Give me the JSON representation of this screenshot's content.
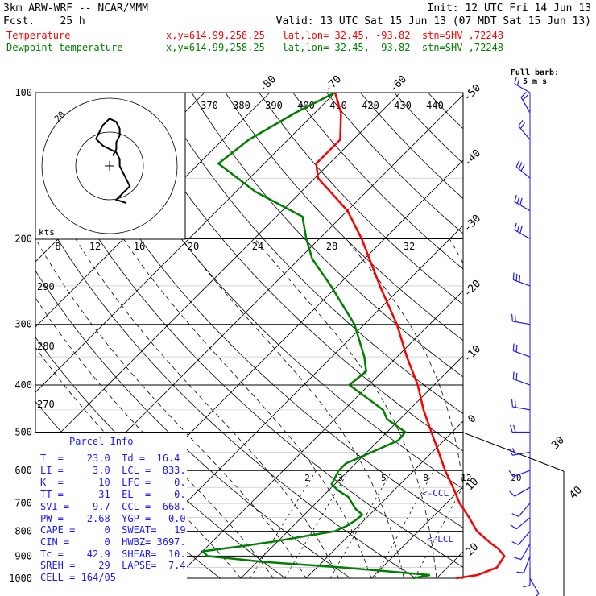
{
  "header": {
    "model": "3km ARW-WRF -- NCAR/MMM",
    "fcst": "Fcst.    25 h",
    "init": "Init: 12 UTC Fri 14 Jun 13",
    "valid": "Valid: 13 UTC Sat 15 Jun 13 (07 MDT Sat 15 Jun 13)"
  },
  "legend": [
    {
      "name": "Temperature",
      "color": "#ff0000",
      "loc": "x,y=614.99,258.25   lat,lon= 32.45, -93.82  stn=SHV ,72248"
    },
    {
      "name": "Dewpoint temperature",
      "color": "#008000",
      "loc": "x,y=614.99,258.25   lat,lon= 32.45, -93.82  stn=SHV ,72248"
    }
  ],
  "barb_legend": {
    "line1": "Full barb:",
    "line2": "5 m s"
  },
  "parcel_info": {
    "title": "Parcel Info",
    "rows": [
      "T  =    23.0  Td =  16.4",
      "LI =     3.0  LCL =  833.",
      "K  =      10  LFC =    0.",
      "TT =      31  EL  =    0.",
      "SVI =    9.7  CCL =  668.",
      "PW =    2.68  YGP =   0.0",
      "CAPE =     0  SWEAT=   19",
      "CIN =      0  HWBZ= 3697.",
      "Tc =    42.9  SHEAR=  10.",
      "SREH =    29  LAPSE=  7.4",
      "CELL = 164/05"
    ]
  },
  "annotations": {
    "ccl": "<-CCL",
    "lcl": "<-LCL",
    "kts": "kts"
  },
  "colors": {
    "temperature": "#ff0000",
    "dewpoint": "#008000",
    "grid": "#000000",
    "wind": "#1a1aff"
  },
  "chart_data": {
    "type": "line",
    "title": "",
    "pressure_levels": [
      100,
      200,
      300,
      400,
      500,
      600,
      700,
      800,
      900,
      1000
    ],
    "temp_axis_labels": [
      -80,
      -70,
      -60,
      -50,
      -40,
      -30,
      -20,
      -10,
      0,
      10,
      20,
      30,
      40
    ],
    "theta_labels": [
      370,
      380,
      390,
      400,
      410,
      420,
      430,
      440
    ],
    "mixing_ratio_labels": [
      2,
      3,
      5,
      8,
      12,
      20
    ],
    "hodo_speed_labels": [
      8,
      12,
      16,
      20,
      24,
      28,
      32
    ],
    "hodo_ring_label": "20",
    "side_theta_labels": [
      290,
      280,
      270
    ],
    "series": [
      {
        "name": "Temperature",
        "color": "#ff0000",
        "p": [
          1000,
          985,
          950,
          900,
          870,
          850,
          800,
          750,
          700,
          650,
          600,
          550,
          500,
          450,
          400,
          350,
          300,
          250,
          200,
          175,
          150,
          140,
          125,
          110,
          100
        ],
        "t": [
          23.0,
          25.8,
          27.6,
          27.0,
          25.0,
          23.2,
          19.0,
          15.7,
          12.0,
          8.6,
          4.8,
          1.0,
          -3.2,
          -7.8,
          -12.5,
          -18.5,
          -25.0,
          -33.5,
          -43.5,
          -50.0,
          -59.5,
          -62.0,
          -62.0,
          -66.0,
          -70.0
        ]
      },
      {
        "name": "Dewpoint temperature",
        "color": "#008000",
        "p": [
          1000,
          985,
          975,
          950,
          925,
          900,
          880,
          860,
          840,
          820,
          800,
          780,
          760,
          740,
          720,
          700,
          680,
          660,
          640,
          620,
          600,
          580,
          560,
          540,
          520,
          500,
          470,
          450,
          400,
          375,
          350,
          300,
          250,
          220,
          200,
          180,
          160,
          140,
          125,
          110,
          100
        ],
        "td": [
          16.4,
          18.5,
          14.5,
          4.0,
          -9.0,
          -18.5,
          -20.0,
          -15.0,
          -10.5,
          -6.8,
          -2.8,
          -1.8,
          -1.3,
          -1.1,
          -3.0,
          -4.5,
          -6.0,
          -8.5,
          -10.5,
          -11.0,
          -11.5,
          -11.5,
          -10.0,
          -8.5,
          -7.0,
          -7.2,
          -12.0,
          -14.0,
          -23.0,
          -22.5,
          -25.0,
          -31.5,
          -41.0,
          -48.0,
          -52.0,
          -56.0,
          -67.0,
          -77.0,
          -76.0,
          -73.0,
          -70.0
        ]
      }
    ],
    "wind_barbs": [
      {
        "p": 1000,
        "spd": 5,
        "dir": 150
      },
      {
        "p": 950,
        "spd": 5,
        "dir": 180
      },
      {
        "p": 900,
        "spd": 5,
        "dir": 200
      },
      {
        "p": 850,
        "spd": 5,
        "dir": 210
      },
      {
        "p": 800,
        "spd": 5,
        "dir": 220
      },
      {
        "p": 750,
        "spd": 5,
        "dir": 230
      },
      {
        "p": 700,
        "spd": 5,
        "dir": 220
      },
      {
        "p": 650,
        "spd": 5,
        "dir": 240
      },
      {
        "p": 600,
        "spd": 5,
        "dir": 250
      },
      {
        "p": 550,
        "spd": 10,
        "dir": 260
      },
      {
        "p": 500,
        "spd": 10,
        "dir": 270
      },
      {
        "p": 450,
        "spd": 10,
        "dir": 280
      },
      {
        "p": 400,
        "spd": 10,
        "dir": 290
      },
      {
        "p": 350,
        "spd": 10,
        "dir": 290
      },
      {
        "p": 300,
        "spd": 10,
        "dir": 280
      },
      {
        "p": 250,
        "spd": 15,
        "dir": 290
      },
      {
        "p": 200,
        "spd": 15,
        "dir": 300
      },
      {
        "p": 175,
        "spd": 15,
        "dir": 300
      },
      {
        "p": 150,
        "spd": 15,
        "dir": 310
      },
      {
        "p": 125,
        "spd": 10,
        "dir": 320
      },
      {
        "p": 110,
        "spd": 10,
        "dir": 330
      },
      {
        "p": 100,
        "spd": 10,
        "dir": 300
      }
    ],
    "hodograph": {
      "u": [
        1,
        2,
        2,
        3,
        3,
        2,
        0,
        -1,
        -2,
        -3,
        -4,
        -2,
        0,
        2,
        3,
        3,
        4,
        5,
        6,
        4,
        2,
        5
      ],
      "v": [
        3,
        5,
        7,
        9,
        11,
        13,
        14,
        13,
        12,
        10,
        8,
        6,
        5,
        4,
        2,
        0,
        -2,
        -4,
        -6,
        -8,
        -10,
        -11
      ]
    }
  }
}
